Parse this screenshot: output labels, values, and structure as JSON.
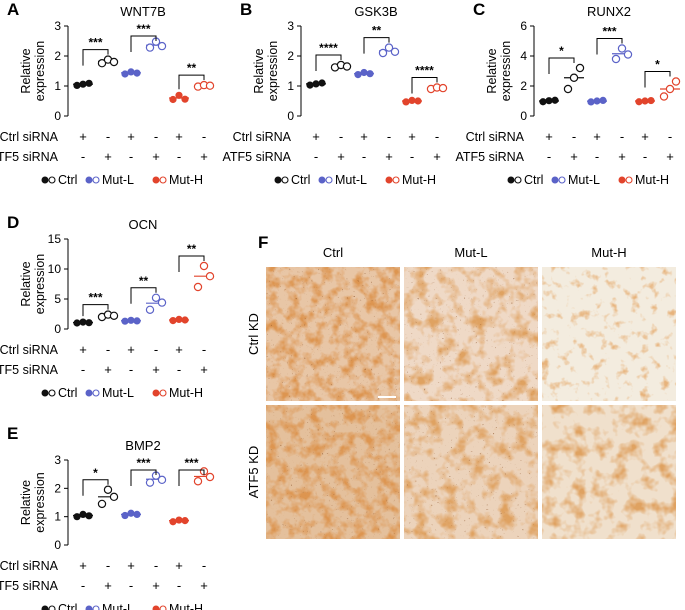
{
  "colors": {
    "ctrl": "#111111",
    "mutL": "#5b63c8",
    "mutH": "#e2442c"
  },
  "legend": [
    {
      "label": "Ctrl",
      "group": "ctrl"
    },
    {
      "label": "Mut-L",
      "group": "mutL"
    },
    {
      "label": "Mut-H",
      "group": "mutH"
    }
  ],
  "row_labels": {
    "ctrl_sirna": "Ctrl siRNA",
    "atf5_sirna": "ATF5 siRNA"
  },
  "sirna_pattern": {
    "ctrl_sirna": [
      "+",
      "-",
      "+",
      "-",
      "+",
      "-"
    ],
    "atf5_sirna": [
      "-",
      "+",
      "-",
      "+",
      "-",
      "+"
    ]
  },
  "panel_f": {
    "letter": "F",
    "columns": [
      "Ctrl",
      "Mut-L",
      "Mut-H"
    ],
    "rows": [
      "Ctrl KD",
      "ATF5 KD"
    ]
  },
  "chart_data": [
    {
      "letter": "A",
      "type": "scatter",
      "title": "WNT7B",
      "ylabel": "Relative expression",
      "ylim": [
        0,
        3
      ],
      "yticks": [
        0,
        1,
        2,
        3
      ],
      "groups": [
        {
          "group": "ctrl",
          "fill": true,
          "values": [
            1.02,
            1.06,
            1.09
          ],
          "mean": 1.06
        },
        {
          "group": "ctrl",
          "fill": false,
          "values": [
            1.76,
            1.88,
            1.8
          ],
          "mean": 1.82
        },
        {
          "group": "mutL",
          "fill": true,
          "values": [
            1.4,
            1.47,
            1.43
          ],
          "mean": 1.44
        },
        {
          "group": "mutL",
          "fill": false,
          "values": [
            2.28,
            2.48,
            2.33
          ],
          "mean": 2.36
        },
        {
          "group": "mutH",
          "fill": true,
          "values": [
            0.55,
            0.69,
            0.56
          ],
          "mean": 0.6
        },
        {
          "group": "mutH",
          "fill": false,
          "values": [
            0.98,
            1.03,
            1.01
          ],
          "mean": 1.01
        }
      ],
      "significance": [
        "***",
        "***",
        "**"
      ]
    },
    {
      "letter": "B",
      "type": "scatter",
      "title": "GSK3B",
      "ylabel": "Relative expression",
      "ylim": [
        0,
        3
      ],
      "yticks": [
        0,
        1,
        2,
        3
      ],
      "groups": [
        {
          "group": "ctrl",
          "fill": true,
          "values": [
            1.03,
            1.07,
            1.1
          ],
          "mean": 1.07
        },
        {
          "group": "ctrl",
          "fill": false,
          "values": [
            1.62,
            1.7,
            1.65
          ],
          "mean": 1.66
        },
        {
          "group": "mutL",
          "fill": true,
          "values": [
            1.38,
            1.45,
            1.41
          ],
          "mean": 1.41
        },
        {
          "group": "mutL",
          "fill": false,
          "values": [
            2.1,
            2.28,
            2.14
          ],
          "mean": 2.17
        },
        {
          "group": "mutH",
          "fill": true,
          "values": [
            0.47,
            0.52,
            0.5
          ],
          "mean": 0.5
        },
        {
          "group": "mutH",
          "fill": false,
          "values": [
            0.9,
            0.95,
            0.93
          ],
          "mean": 0.93
        }
      ],
      "significance": [
        "****",
        "**",
        "****"
      ]
    },
    {
      "letter": "C",
      "type": "scatter",
      "title": "RUNX2",
      "ylabel": "Relative expression",
      "ylim": [
        0,
        6
      ],
      "yticks": [
        0,
        2,
        4,
        6
      ],
      "groups": [
        {
          "group": "ctrl",
          "fill": true,
          "values": [
            0.95,
            1.02,
            1.05
          ],
          "mean": 1.0
        },
        {
          "group": "ctrl",
          "fill": false,
          "values": [
            1.8,
            2.55,
            3.2
          ],
          "mean": 2.55
        },
        {
          "group": "mutL",
          "fill": true,
          "values": [
            0.94,
            1.0,
            1.04
          ],
          "mean": 0.99
        },
        {
          "group": "mutL",
          "fill": false,
          "values": [
            3.8,
            4.5,
            4.1
          ],
          "mean": 4.15
        },
        {
          "group": "mutH",
          "fill": true,
          "values": [
            0.95,
            1.0,
            1.03
          ],
          "mean": 1.0
        },
        {
          "group": "mutH",
          "fill": false,
          "values": [
            1.3,
            1.8,
            2.3
          ],
          "mean": 1.8
        }
      ],
      "significance": [
        "*",
        "***",
        "*"
      ]
    },
    {
      "letter": "D",
      "type": "scatter",
      "title": "OCN",
      "ylabel": "Relative expression",
      "ylim": [
        0,
        15
      ],
      "yticks": [
        0,
        5,
        10,
        15
      ],
      "groups": [
        {
          "group": "ctrl",
          "fill": true,
          "values": [
            1.0,
            1.15,
            1.05
          ],
          "mean": 1.07
        },
        {
          "group": "ctrl",
          "fill": false,
          "values": [
            2.0,
            2.4,
            2.2
          ],
          "mean": 2.2
        },
        {
          "group": "mutL",
          "fill": true,
          "values": [
            1.3,
            1.45,
            1.35
          ],
          "mean": 1.37
        },
        {
          "group": "mutL",
          "fill": false,
          "values": [
            3.2,
            5.2,
            4.4
          ],
          "mean": 4.3
        },
        {
          "group": "mutH",
          "fill": true,
          "values": [
            1.4,
            1.6,
            1.5
          ],
          "mean": 1.5
        },
        {
          "group": "mutH",
          "fill": false,
          "values": [
            7.0,
            10.5,
            8.8
          ],
          "mean": 8.8
        }
      ],
      "significance": [
        "***",
        "**",
        "**"
      ]
    },
    {
      "letter": "E",
      "type": "scatter",
      "title": "BMP2",
      "ylabel": "Relative expression",
      "ylim": [
        0,
        3
      ],
      "yticks": [
        0,
        1,
        2,
        3
      ],
      "groups": [
        {
          "group": "ctrl",
          "fill": true,
          "values": [
            1.0,
            1.08,
            1.03
          ],
          "mean": 1.04
        },
        {
          "group": "ctrl",
          "fill": false,
          "values": [
            1.45,
            1.95,
            1.7
          ],
          "mean": 1.7
        },
        {
          "group": "mutL",
          "fill": true,
          "values": [
            1.04,
            1.12,
            1.08
          ],
          "mean": 1.08
        },
        {
          "group": "mutL",
          "fill": false,
          "values": [
            2.2,
            2.45,
            2.3
          ],
          "mean": 2.32
        },
        {
          "group": "mutH",
          "fill": true,
          "values": [
            0.82,
            0.88,
            0.86
          ],
          "mean": 0.86
        },
        {
          "group": "mutH",
          "fill": false,
          "values": [
            2.25,
            2.6,
            2.4
          ],
          "mean": 2.42
        }
      ],
      "significance": [
        "*",
        "***",
        "***"
      ]
    }
  ]
}
